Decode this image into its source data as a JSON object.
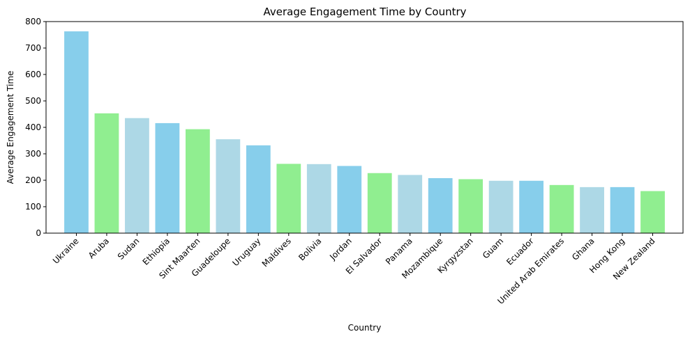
{
  "chart_data": {
    "type": "bar",
    "title": "Average Engagement Time by Country",
    "xlabel": "Country",
    "ylabel": "Average Engagement Time",
    "ylim": [
      0,
      800
    ],
    "yticks": [
      0,
      100,
      200,
      300,
      400,
      500,
      600,
      700,
      800
    ],
    "grid": false,
    "categories": [
      "Ukraine",
      "Aruba",
      "Sudan",
      "Ethiopia",
      "Sint Maarten",
      "Guadeloupe",
      "Uruguay",
      "Maldives",
      "Bolivia",
      "Jordan",
      "El Salvador",
      "Panama",
      "Mozambique",
      "Kyrgyzstan",
      "Guam",
      "Ecuador",
      "United Arab Emirates",
      "Ghana",
      "Hong Kong",
      "New Zealand"
    ],
    "values": [
      763,
      453,
      435,
      416,
      393,
      355,
      332,
      262,
      261,
      254,
      227,
      220,
      208,
      204,
      198,
      198,
      182,
      174,
      174,
      159
    ],
    "bar_colors": [
      "#87ceeb",
      "#90ee90",
      "#add8e6"
    ]
  }
}
